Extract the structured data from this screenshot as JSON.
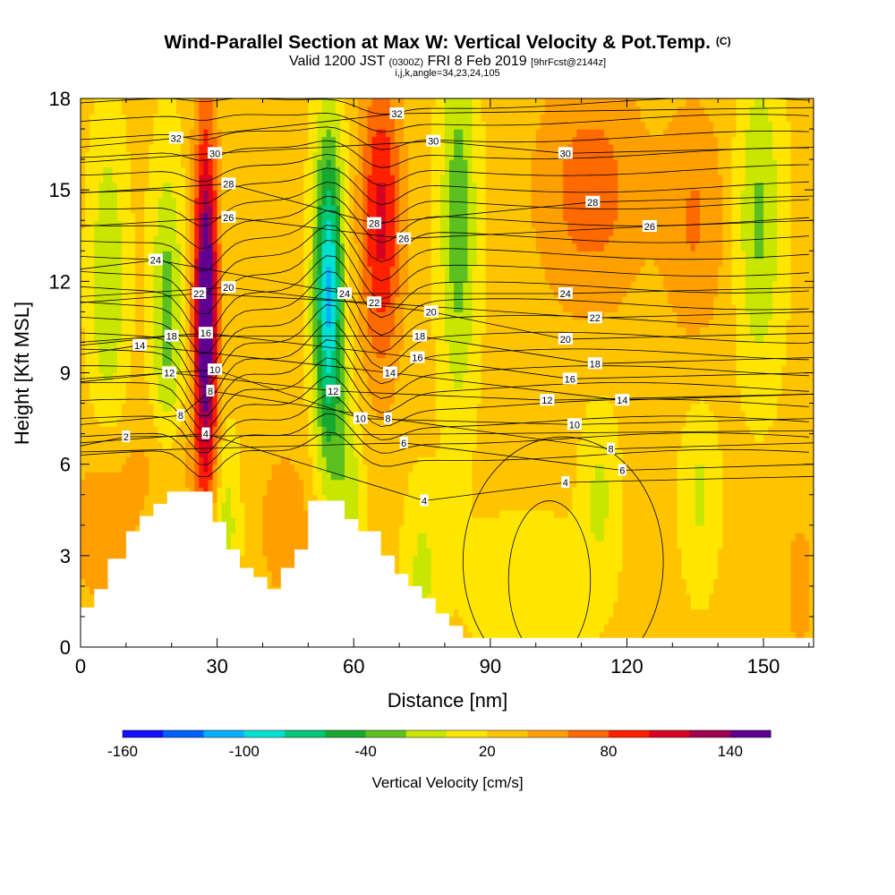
{
  "header": {
    "title": "Wind-Parallel Section at Max W: Vertical Velocity & Pot.Temp.",
    "copyright": "(C)",
    "valid_prefix": "Valid 1200 JST",
    "valid_utc": "(0300Z)",
    "valid_date": "FRI 8 Feb 2019",
    "forecast": "[9hrFcst@2144z]",
    "section_info": "i,j,k,angle=34,23,24,105"
  },
  "chart_data": {
    "type": "heatmap",
    "xlabel": "Distance [nm]",
    "ylabel": "Height [Kft MSL]",
    "xlim": [
      0,
      161
    ],
    "ylim": [
      0,
      18
    ],
    "x_ticks": [
      0,
      30,
      60,
      90,
      120,
      150
    ],
    "y_ticks": [
      0,
      3,
      6,
      9,
      12,
      15,
      18
    ],
    "colorbar": {
      "label": "Vertical Velocity [cm/s]",
      "tick_labels": [
        -160,
        -100,
        -40,
        20,
        80,
        140
      ],
      "colors": [
        "#1010ff",
        "#0060ff",
        "#00b0ff",
        "#00e0d0",
        "#00c878",
        "#18a830",
        "#5cc020",
        "#c8e600",
        "#ffe600",
        "#ffc400",
        "#ffa000",
        "#ff6a00",
        "#ff2000",
        "#d80020",
        "#a00050",
        "#600090"
      ]
    },
    "terrain_top_kft": [
      [
        0,
        1.3
      ],
      [
        3,
        1.3
      ],
      [
        3,
        1.9
      ],
      [
        6,
        1.9
      ],
      [
        6,
        2.9
      ],
      [
        10,
        2.9
      ],
      [
        10,
        3.8
      ],
      [
        13,
        3.8
      ],
      [
        13,
        4.3
      ],
      [
        16,
        4.3
      ],
      [
        16,
        4.7
      ],
      [
        19,
        4.7
      ],
      [
        19,
        5.1
      ],
      [
        29,
        5.1
      ],
      [
        29,
        4.1
      ],
      [
        32,
        4.1
      ],
      [
        32,
        3.2
      ],
      [
        35,
        3.2
      ],
      [
        35,
        2.6
      ],
      [
        38,
        2.6
      ],
      [
        38,
        2.3
      ],
      [
        41,
        2.3
      ],
      [
        41,
        1.9
      ],
      [
        44,
        1.9
      ],
      [
        44,
        2.6
      ],
      [
        47,
        2.6
      ],
      [
        47,
        3.2
      ],
      [
        50,
        3.2
      ],
      [
        50,
        4.8
      ],
      [
        58,
        4.8
      ],
      [
        58,
        4.2
      ],
      [
        61,
        4.2
      ],
      [
        61,
        3.8
      ],
      [
        66,
        3.8
      ],
      [
        66,
        3.0
      ],
      [
        69,
        3.0
      ],
      [
        69,
        2.4
      ],
      [
        72,
        2.4
      ],
      [
        72,
        2.0
      ],
      [
        75,
        2.0
      ],
      [
        75,
        1.6
      ],
      [
        78,
        1.6
      ],
      [
        78,
        1.1
      ],
      [
        81,
        1.1
      ],
      [
        81,
        0.7
      ],
      [
        84,
        0.7
      ],
      [
        84,
        0.3
      ],
      [
        161,
        0.3
      ]
    ],
    "theta_contours": [
      {
        "label": "32",
        "x": 21,
        "y": 16.7
      },
      {
        "label": "30",
        "x": 29.5,
        "y": 16.2
      },
      {
        "label": "28",
        "x": 32.5,
        "y": 15.2
      },
      {
        "label": "26",
        "x": 32.5,
        "y": 14.1
      },
      {
        "label": "24",
        "x": 16.5,
        "y": 12.7
      },
      {
        "label": "22",
        "x": 26,
        "y": 11.6
      },
      {
        "label": "20",
        "x": 32.5,
        "y": 11.8
      },
      {
        "label": "18",
        "x": 20,
        "y": 10.2
      },
      {
        "label": "16",
        "x": 27.5,
        "y": 10.3
      },
      {
        "label": "14",
        "x": 13,
        "y": 9.9
      },
      {
        "label": "12",
        "x": 19.5,
        "y": 9.0
      },
      {
        "label": "10",
        "x": 29.5,
        "y": 9.1
      },
      {
        "label": "8",
        "x": 28.5,
        "y": 8.4
      },
      {
        "label": "8",
        "x": 22,
        "y": 7.6
      },
      {
        "label": "4",
        "x": 27.5,
        "y": 7.0
      },
      {
        "label": "2",
        "x": 10,
        "y": 6.9
      },
      {
        "label": "32",
        "x": 69.5,
        "y": 17.5
      },
      {
        "label": "30",
        "x": 77.5,
        "y": 16.6
      },
      {
        "label": "28",
        "x": 64.5,
        "y": 13.9
      },
      {
        "label": "26",
        "x": 71,
        "y": 13.4
      },
      {
        "label": "24",
        "x": 58,
        "y": 11.6
      },
      {
        "label": "22",
        "x": 64.5,
        "y": 11.3
      },
      {
        "label": "20",
        "x": 77,
        "y": 11.0
      },
      {
        "label": "18",
        "x": 74.5,
        "y": 10.2
      },
      {
        "label": "16",
        "x": 74,
        "y": 9.5
      },
      {
        "label": "14",
        "x": 68,
        "y": 9.0
      },
      {
        "label": "12",
        "x": 55.5,
        "y": 8.4
      },
      {
        "label": "10",
        "x": 61.5,
        "y": 7.5
      },
      {
        "label": "8",
        "x": 67.5,
        "y": 7.5
      },
      {
        "label": "6",
        "x": 71,
        "y": 6.7
      },
      {
        "label": "4",
        "x": 75.5,
        "y": 4.8
      },
      {
        "label": "30",
        "x": 106.5,
        "y": 16.2
      },
      {
        "label": "28",
        "x": 112.5,
        "y": 14.6
      },
      {
        "label": "26",
        "x": 125,
        "y": 13.8
      },
      {
        "label": "24",
        "x": 106.5,
        "y": 11.6
      },
      {
        "label": "22",
        "x": 113,
        "y": 10.8
      },
      {
        "label": "20",
        "x": 106.5,
        "y": 10.1
      },
      {
        "label": "18",
        "x": 113,
        "y": 9.3
      },
      {
        "label": "16",
        "x": 107.5,
        "y": 8.8
      },
      {
        "label": "14",
        "x": 119,
        "y": 8.1
      },
      {
        "label": "12",
        "x": 102.5,
        "y": 8.1
      },
      {
        "label": "10",
        "x": 108.5,
        "y": 7.3
      },
      {
        "label": "8",
        "x": 116.5,
        "y": 6.5
      },
      {
        "label": "6",
        "x": 119,
        "y": 5.8
      },
      {
        "label": "4",
        "x": 106.5,
        "y": 5.4
      }
    ]
  }
}
